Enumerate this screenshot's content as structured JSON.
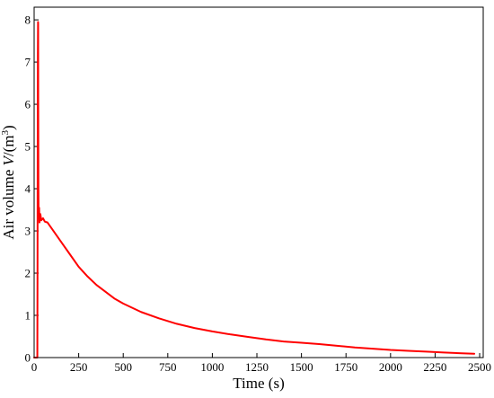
{
  "chart_data": {
    "type": "line",
    "xlabel": "Time (s)",
    "ylabel": {
      "prefix": "Air volume ",
      "symbol": "V",
      "mid": "/(m",
      "exponent": "3",
      "suffix": ")"
    },
    "xlim": [
      0,
      2520
    ],
    "ylim": [
      0,
      8.3
    ],
    "xticks": [
      0,
      250,
      500,
      750,
      1000,
      1250,
      1500,
      1750,
      2000,
      2250,
      2500
    ],
    "yticks": [
      0,
      1,
      2,
      3,
      4,
      5,
      6,
      7,
      8
    ],
    "grid": false,
    "line_color": "#ff0000",
    "series": [
      {
        "x": [
          0,
          18,
          19,
          20,
          21,
          22,
          22.5,
          23,
          24,
          25,
          28,
          30,
          35,
          40,
          50,
          60,
          75,
          100,
          150,
          200,
          250,
          300,
          350,
          400,
          450,
          500,
          600,
          700,
          800,
          900,
          1000,
          1100,
          1200,
          1300,
          1400,
          1500,
          1600,
          1700,
          1800,
          1900,
          2000,
          2100,
          2200,
          2300,
          2400,
          2470
        ],
        "y": [
          0,
          0,
          2.0,
          5.0,
          7.2,
          7.95,
          7.9,
          6.0,
          4.0,
          3.3,
          3.55,
          3.2,
          3.4,
          3.25,
          3.3,
          3.22,
          3.2,
          3.05,
          2.75,
          2.45,
          2.15,
          1.92,
          1.72,
          1.56,
          1.4,
          1.28,
          1.08,
          0.93,
          0.8,
          0.7,
          0.62,
          0.55,
          0.49,
          0.43,
          0.38,
          0.35,
          0.32,
          0.28,
          0.24,
          0.21,
          0.18,
          0.16,
          0.14,
          0.12,
          0.1,
          0.09
        ]
      }
    ]
  }
}
